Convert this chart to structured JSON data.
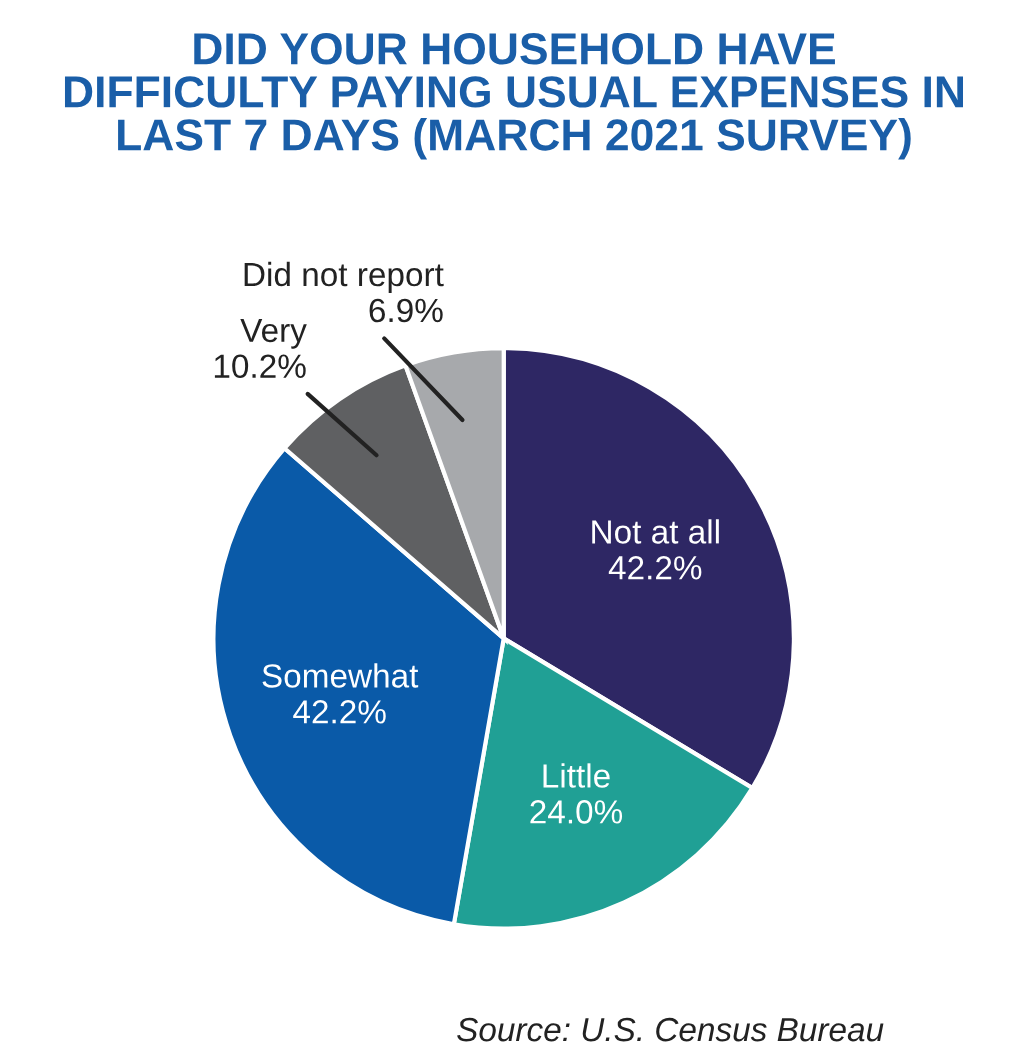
{
  "chart_data": {
    "type": "pie",
    "title": "DID YOUR HOUSEHOLD HAVE\nDIFFICULTY PAYING USUAL EXPENSES IN\nLAST 7 DAYS (MARCH 2021 SURVEY)",
    "categories": [
      "Not at all",
      "Little",
      "Somewhat",
      "Very",
      "Did not report"
    ],
    "values": [
      42.2,
      24.0,
      42.2,
      10.2,
      6.9
    ],
    "value_labels": [
      "42.2%",
      "24.0%",
      "42.2%",
      "10.2%",
      "6.9%"
    ],
    "colors": [
      "#2e2764",
      "#20a095",
      "#0a5aa8",
      "#5f6062",
      "#a7a9ac"
    ],
    "annotations": [
      "Source: U.S. Census Bureau"
    ]
  }
}
